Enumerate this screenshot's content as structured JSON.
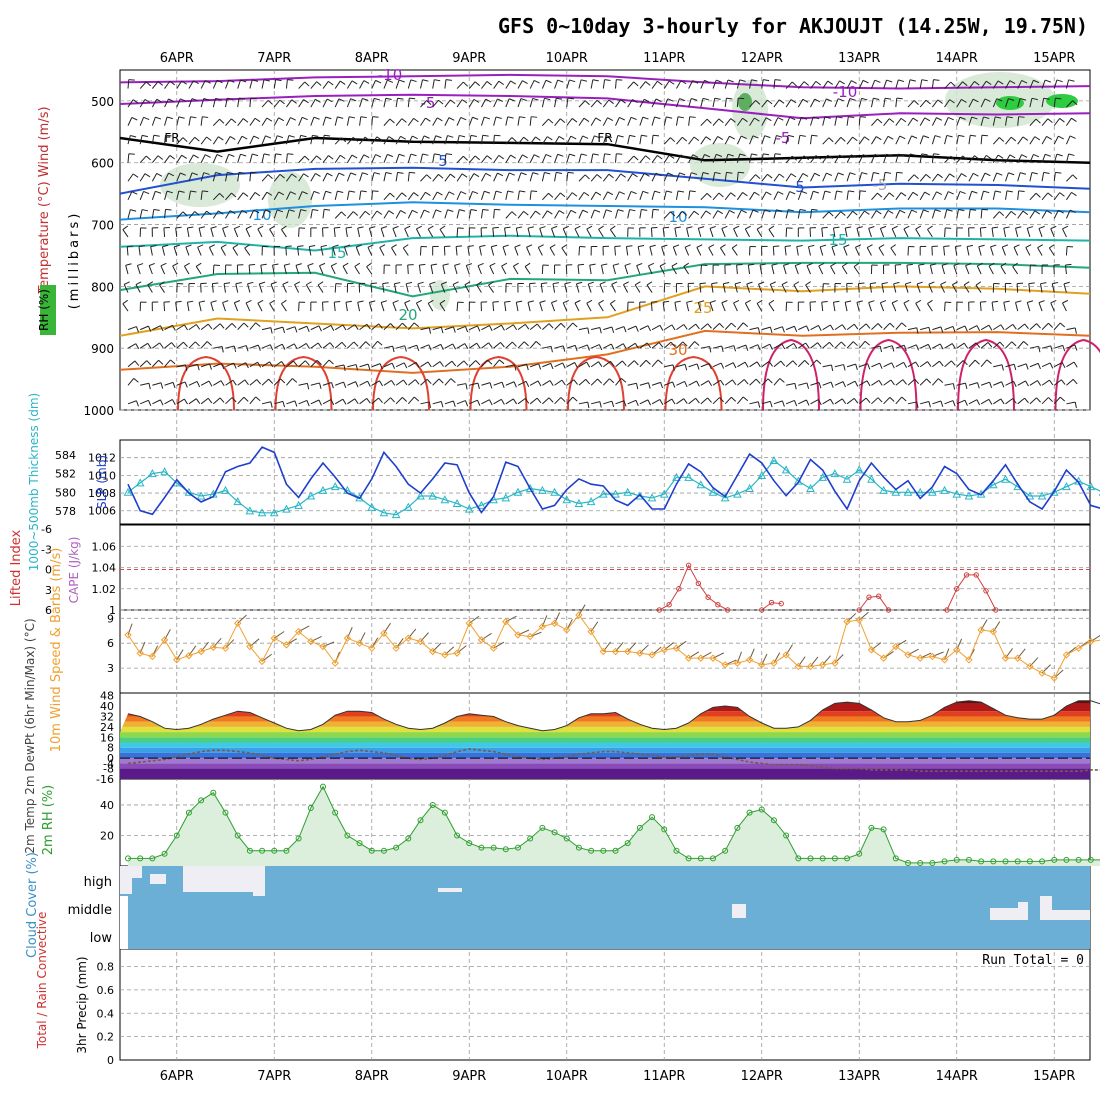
{
  "title": "GFS 0~10day 3-hourly for AKJOUJT (14.25W, 19.75N)",
  "days": [
    "6APR",
    "7APR",
    "8APR",
    "9APR",
    "10APR",
    "11APR",
    "12APR",
    "13APR",
    "14APR",
    "15APR"
  ],
  "chart_data": [
    {
      "type": "line",
      "panel": "upper-air",
      "ylabel": "(millibars)",
      "ylabel_left": "Temperature (°C) Wind (m/s)",
      "ylabel_rh": "RH (%)",
      "y_ticks": [
        500,
        600,
        700,
        800,
        900,
        1000
      ],
      "ylim": [
        1000,
        450
      ],
      "contour_labels": [
        "-10",
        "-5",
        "-10",
        "FR",
        "FR",
        "5",
        "-5",
        "10",
        "5",
        "10",
        "-5",
        "15",
        "15",
        "20",
        "25",
        "30"
      ],
      "series": [
        {
          "name": "-10",
          "x": [
            0,
            1,
            2,
            3,
            4,
            5,
            6,
            7,
            8,
            9,
            10
          ],
          "values": [
            470,
            468,
            462,
            460,
            458,
            460,
            470,
            478,
            480,
            478,
            476
          ]
        },
        {
          "name": "-5",
          "x": [
            0,
            1,
            2,
            3,
            4,
            5,
            6,
            7,
            8,
            9,
            10
          ],
          "values": [
            505,
            498,
            492,
            490,
            492,
            496,
            512,
            528,
            520,
            522,
            520
          ]
        },
        {
          "name": "FR",
          "x": [
            0,
            1,
            2,
            3,
            4,
            5,
            6,
            7,
            8,
            9,
            10
          ],
          "values": [
            560,
            582,
            560,
            566,
            568,
            570,
            596,
            592,
            588,
            596,
            600
          ]
        },
        {
          "name": "5",
          "x": [
            0,
            1,
            2,
            3,
            4,
            5,
            6,
            7,
            8,
            9,
            10
          ],
          "values": [
            650,
            620,
            610,
            608,
            612,
            612,
            626,
            640,
            634,
            636,
            642
          ]
        },
        {
          "name": "10",
          "x": [
            0,
            1,
            2,
            3,
            4,
            5,
            6,
            7,
            8,
            9,
            10
          ],
          "values": [
            692,
            682,
            670,
            664,
            668,
            670,
            672,
            680,
            674,
            674,
            680
          ]
        },
        {
          "name": "15",
          "x": [
            0,
            1,
            2,
            3,
            4,
            5,
            6,
            7,
            8,
            9,
            10
          ],
          "values": [
            736,
            728,
            742,
            722,
            718,
            722,
            724,
            726,
            722,
            724,
            726
          ]
        },
        {
          "name": "20",
          "x": [
            0,
            1,
            2,
            3,
            4,
            5,
            6,
            7,
            8,
            9,
            10
          ],
          "values": [
            806,
            780,
            778,
            816,
            788,
            790,
            764,
            762,
            762,
            764,
            770
          ]
        },
        {
          "name": "25",
          "x": [
            0,
            1,
            2,
            3,
            4,
            5,
            6,
            7,
            8,
            9,
            10
          ],
          "values": [
            880,
            852,
            860,
            868,
            860,
            850,
            800,
            808,
            800,
            804,
            812
          ]
        },
        {
          "name": "30",
          "x": [
            0,
            1,
            2,
            3,
            4,
            5,
            6,
            7,
            8,
            9,
            10
          ],
          "values": [
            935,
            925,
            930,
            940,
            930,
            910,
            872,
            880,
            875,
            874,
            880
          ]
        }
      ]
    },
    {
      "type": "line",
      "panel": "slp-thickness",
      "ylabel_left": "1000~500mb Thickness (dm)",
      "ylabel_right": "SLP (mb)",
      "left_ticks": [
        578,
        580,
        582,
        584
      ],
      "right_ticks": [
        1006,
        1008,
        1010,
        1012
      ],
      "ylim_slp": [
        1004.5,
        1014
      ],
      "ylim_thick": [
        576.6,
        585.6
      ],
      "series": [
        {
          "name": "SLP (mb)",
          "values": [
            1009,
            1006,
            1005.6,
            1007.5,
            1009.5,
            1008,
            1007,
            1007.6,
            1010.4,
            1011,
            1011.4,
            1013.2,
            1012.6,
            1009,
            1007.5,
            1009.6,
            1011.4,
            1009.8,
            1008,
            1007.4,
            1009.6,
            1012.6,
            1011,
            1009,
            1008,
            1009.6,
            1011.4,
            1011.2,
            1008,
            1005.8,
            1007.6,
            1011.5,
            1011,
            1008.5,
            1006.2,
            1006.6,
            1008.4,
            1009.6,
            1009,
            1008.8,
            1007.2,
            1006.6,
            1007.8,
            1006.2,
            1006.2,
            1009,
            1011.3,
            1010.4,
            1008.6,
            1007.6,
            1010,
            1012.4,
            1011.4,
            1009.4,
            1007.7,
            1009.2,
            1011.8,
            1010.6,
            1008.2,
            1006.2,
            1009.4,
            1011.4,
            1009.8,
            1008.4,
            1009.4,
            1007.4,
            1008.7,
            1011,
            1010.2,
            1008.4,
            1007.8,
            1009.4,
            1011.2,
            1009,
            1007,
            1006.2,
            1008.2,
            1010.6,
            1009.2,
            1006.6,
            1006.2,
            1006.4,
            1006.8,
            1005.6
          ]
        },
        {
          "name": "Thickness (dm)",
          "values": [
            580,
            581,
            582,
            582.2,
            581,
            580,
            579.6,
            579.8,
            580.2,
            579,
            578,
            577.8,
            577.8,
            578.2,
            578.6,
            579.6,
            580.2,
            580.6,
            580.2,
            579.4,
            578.4,
            577.8,
            577.6,
            578.4,
            579.6,
            579.6,
            579.2,
            578.8,
            578.2,
            578.6,
            579.2,
            579.4,
            580,
            580.4,
            580.2,
            580,
            579.2,
            578.8,
            579,
            579.8,
            579.8,
            580,
            579.6,
            579.4,
            579.8,
            581.6,
            581.6,
            580.8,
            580,
            579.4,
            579.8,
            580.4,
            581.8,
            583.4,
            582.4,
            581.2,
            580.4,
            581.6,
            582,
            581.4,
            582.4,
            581.4,
            580.2,
            580,
            580,
            580,
            580,
            580.2,
            579.8,
            579.6,
            579.8,
            580.8,
            581.4,
            580.6,
            579.6,
            579.6,
            580,
            580.6,
            581.2,
            580.6,
            580,
            579.6,
            580.2,
            579.2
          ]
        }
      ]
    },
    {
      "type": "line",
      "panel": "stability",
      "ylabel_left": "Lifted Index",
      "ylabel_right": "CAPE (J/kg)",
      "left_ticks": [
        "-6",
        "-3",
        "0",
        "3",
        "6"
      ],
      "right_ticks": [
        "1",
        "1.02",
        "1.04",
        "1.06"
      ],
      "ylim_cape": [
        1,
        1.08
      ],
      "reference_line": 0,
      "series": [
        {
          "name": "CAPE (J/kg)",
          "x": [
            5.45,
            5.55,
            5.65,
            5.75,
            5.85,
            5.95,
            6.05,
            6.15
          ],
          "values": [
            1,
            1.005,
            1.02,
            1.042,
            1.025,
            1.012,
            1.005,
            1
          ]
        },
        {
          "name": "CAPE (J/kg)",
          "x": [
            6.5,
            6.6,
            6.7
          ],
          "values": [
            1,
            1.007,
            1.006
          ]
        },
        {
          "name": "CAPE (J/kg)",
          "x": [
            7.5,
            7.6,
            7.7,
            7.8
          ],
          "values": [
            1,
            1.012,
            1.013,
            1
          ]
        },
        {
          "name": "CAPE (J/kg)",
          "x": [
            8.4,
            8.5,
            8.6,
            8.7,
            8.8,
            8.9
          ],
          "values": [
            1,
            1.02,
            1.033,
            1.033,
            1.018,
            1
          ]
        }
      ]
    },
    {
      "type": "line",
      "panel": "wind10m",
      "ylabel": "10m Wind Speed & Barbs (m/s)",
      "y_ticks": [
        3,
        6,
        9
      ],
      "ylim": [
        0,
        10
      ],
      "series": [
        {
          "name": "10m Wind Speed",
          "values": [
            7,
            4.8,
            4.4,
            6.4,
            4,
            4.5,
            5,
            5.5,
            5.4,
            8.4,
            5.6,
            3.8,
            6.6,
            5.8,
            7.4,
            6.2,
            5.6,
            3.6,
            6.6,
            6,
            5.4,
            7.2,
            5.4,
            6.6,
            6.2,
            5,
            4.6,
            4.8,
            8.4,
            6.4,
            5.4,
            8.6,
            7,
            6.8,
            8,
            8.4,
            7.6,
            9.4,
            7.4,
            5,
            5,
            5,
            4.8,
            4.6,
            5.2,
            5.4,
            4.2,
            4.2,
            4.2,
            3.4,
            3.6,
            4,
            3.4,
            3.6,
            4.6,
            3.2,
            3.2,
            3.4,
            3.6,
            8.6,
            8.8,
            5.2,
            4.2,
            5.6,
            4.6,
            4.2,
            4.4,
            4,
            5.2,
            4,
            7.6,
            7.4,
            4.2,
            4.2,
            3.2,
            2.4,
            1.8,
            4.6,
            5.4,
            6.2,
            6.4,
            5,
            3.2,
            3.4
          ]
        }
      ]
    },
    {
      "type": "area",
      "panel": "temperature2m",
      "ylabel": "2m Temp 2m DewPt (6hr Min/Max) (°C)",
      "y_ticks": [
        "-8",
        "0",
        "8",
        "16",
        "24",
        "32",
        "40",
        "48"
      ],
      "extra_ticks": [
        "-16",
        "-4"
      ],
      "ylim": [
        -16,
        50
      ],
      "series": [
        {
          "name": "2m Temp",
          "values": [
            34,
            32,
            28,
            23,
            22,
            23,
            26,
            30,
            33,
            36,
            35,
            31,
            27,
            23,
            21,
            22,
            26,
            33,
            36,
            36,
            35,
            30,
            26,
            23,
            22,
            23,
            27,
            32,
            34,
            33,
            32,
            28,
            25,
            23,
            21,
            22,
            25,
            31,
            34,
            34,
            35,
            30,
            26,
            23,
            22,
            23,
            27,
            34,
            39,
            40,
            39,
            32,
            27,
            23,
            23,
            24,
            29,
            37,
            42,
            43,
            42,
            37,
            31,
            28,
            28,
            29,
            33,
            39,
            43,
            44,
            43,
            38,
            33,
            31,
            30,
            30,
            33,
            40,
            44,
            44,
            41,
            34,
            30,
            28
          ]
        },
        {
          "name": "2m DewPt",
          "values": [
            -4,
            -3,
            -2,
            -1,
            1,
            3,
            5,
            6,
            6,
            5,
            4,
            2,
            0,
            -1,
            -2,
            -1,
            1,
            3,
            5,
            6,
            5,
            4,
            2,
            0,
            -1,
            0,
            2,
            5,
            7,
            6,
            5,
            3,
            1,
            0,
            -1,
            0,
            1,
            3,
            4,
            5,
            5,
            4,
            3,
            2,
            1,
            1,
            2,
            3,
            3,
            1,
            -1,
            -3,
            -4,
            -5,
            -5,
            -5,
            -6,
            -7,
            -8,
            -8,
            -8,
            -9,
            -9,
            -9,
            -9,
            -10,
            -10,
            -10,
            -10,
            -10,
            -10,
            -10,
            -10,
            -10,
            -10,
            -10,
            -10,
            -10,
            -10,
            -9,
            -9,
            -9,
            -9,
            -9
          ]
        }
      ]
    },
    {
      "type": "area",
      "panel": "rh2m",
      "ylabel": "2m RH (%)",
      "y_ticks": [
        20,
        40
      ],
      "ylim": [
        0,
        57
      ],
      "series": [
        {
          "name": "2m RH",
          "values": [
            5,
            5,
            5,
            8,
            20,
            35,
            43,
            48,
            35,
            20,
            10,
            10,
            10,
            10,
            18,
            38,
            52,
            35,
            20,
            15,
            10,
            10,
            12,
            18,
            30,
            40,
            35,
            20,
            15,
            12,
            12,
            11,
            12,
            18,
            25,
            22,
            18,
            12,
            10,
            10,
            10,
            15,
            25,
            32,
            24,
            10,
            5,
            5,
            5,
            10,
            25,
            35,
            37,
            30,
            20,
            5,
            5,
            5,
            5,
            5,
            8,
            25,
            24,
            5,
            2,
            2,
            2,
            3,
            4,
            4,
            3,
            3,
            3,
            3,
            3,
            3,
            4,
            4,
            4,
            4,
            4,
            4,
            5,
            7,
            8
          ]
        }
      ]
    },
    {
      "type": "area",
      "panel": "cloud-cover",
      "ylabel": "Cloud Cover (%)",
      "levels": [
        "high",
        "middle",
        "low"
      ]
    },
    {
      "type": "line",
      "panel": "precip",
      "ylabel": "3hr Precip (mm)",
      "ylabel_left": "Total / Rain Convective",
      "y_ticks": [
        "0",
        "0.2",
        "0.4",
        "0.6",
        "0.8"
      ],
      "ylim": [
        0,
        0.95
      ],
      "annotation": "Run Total = 0",
      "series": []
    }
  ],
  "colors": {
    "grid": "#9a9a9a",
    "cloud": "#6baed6",
    "slp": "#1f3fcc",
    "thickness": "#29b6c6",
    "wind": "#f0a030",
    "rh": "#2e9e2e",
    "temp_dark": "#8b1a1a",
    "cape": "#d04040"
  }
}
